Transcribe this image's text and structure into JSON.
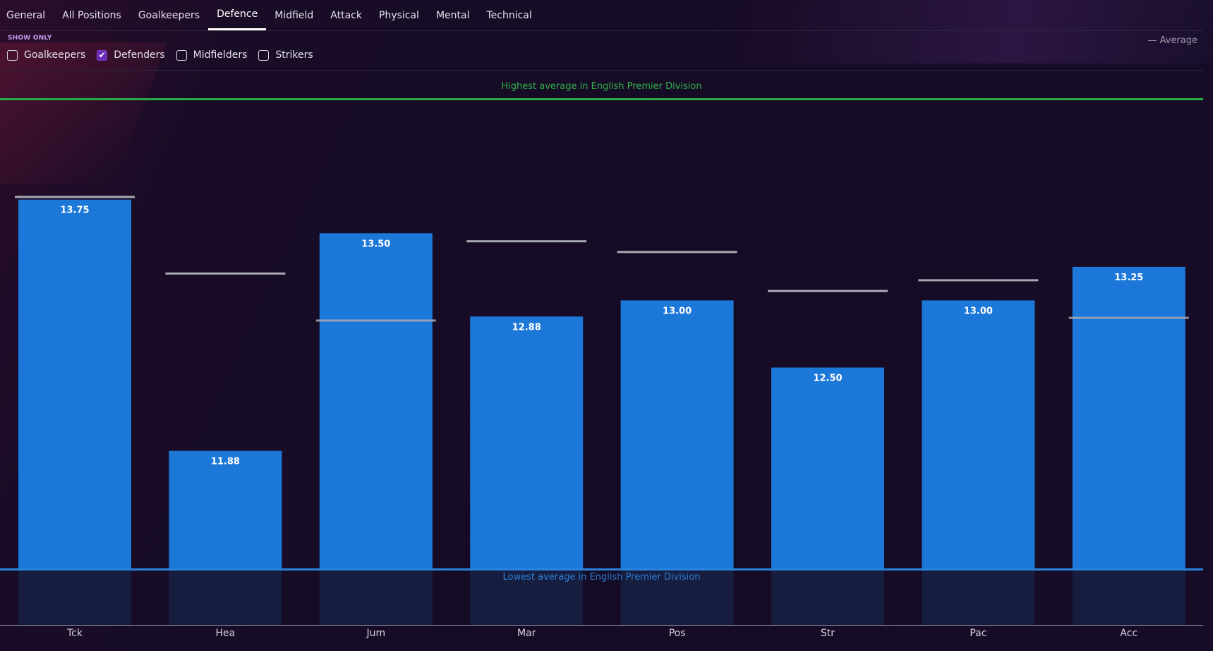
{
  "tabs": [
    {
      "label": "General",
      "active": false
    },
    {
      "label": "All Positions",
      "active": false
    },
    {
      "label": "Goalkeepers",
      "active": false
    },
    {
      "label": "Defence",
      "active": true
    },
    {
      "label": "Midfield",
      "active": false
    },
    {
      "label": "Attack",
      "active": false
    },
    {
      "label": "Physical",
      "active": false
    },
    {
      "label": "Mental",
      "active": false
    },
    {
      "label": "Technical",
      "active": false
    }
  ],
  "filters": {
    "title": "SHOW ONLY",
    "items": [
      {
        "label": "Goalkeepers",
        "checked": false
      },
      {
        "label": "Defenders",
        "checked": true
      },
      {
        "label": "Midfielders",
        "checked": false
      },
      {
        "label": "Strikers",
        "checked": false
      }
    ]
  },
  "legend": {
    "label": "— Average"
  },
  "chart_data": {
    "type": "bar",
    "categories": [
      "Tck",
      "Hea",
      "Jum",
      "Mar",
      "Pos",
      "Str",
      "Pac",
      "Acc"
    ],
    "values": [
      13.75,
      11.88,
      13.5,
      12.88,
      13.0,
      12.5,
      13.0,
      13.25
    ],
    "value_labels": [
      "13.75",
      "11.88",
      "13.50",
      "12.88",
      "13.00",
      "12.50",
      "13.00",
      "13.25"
    ],
    "averages": [
      13.77,
      13.2,
      12.85,
      13.44,
      13.36,
      13.07,
      13.15,
      12.87
    ],
    "highest_label": "Highest average in English Premier Division",
    "lowest_label": "Lowest average in English Premier Division",
    "ylim": [
      11.0,
      14.5
    ],
    "lowest_value": 11.0,
    "highest_value": 14.5,
    "grid": false,
    "legend_position": "top-right",
    "colors": {
      "bar": "#1b78d8",
      "bar_below": "#161d3f",
      "average_line": "#a9a9b4",
      "highest_line": "#27a844",
      "lowest_line": "#2a83de"
    }
  }
}
